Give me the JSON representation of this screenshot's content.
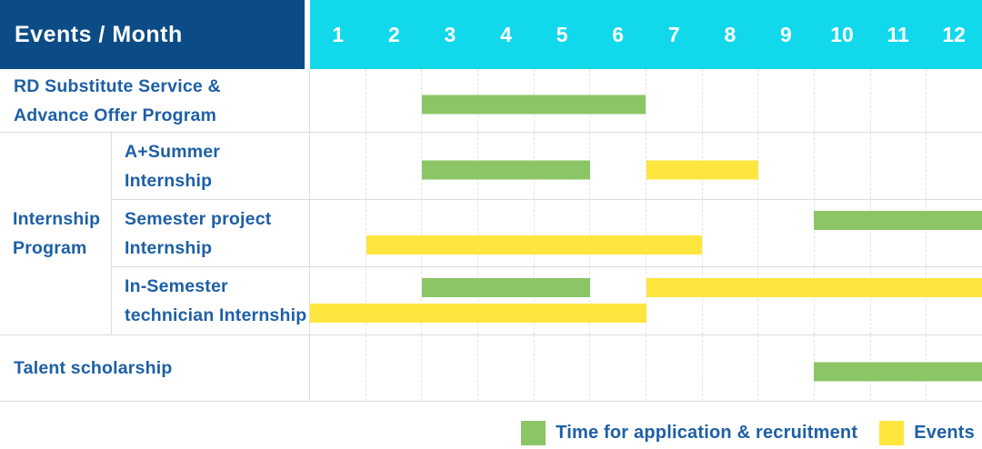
{
  "colors": {
    "navy": "#0b4c86",
    "cyan": "#12d8ec",
    "green": "#8bc566",
    "yellow": "#ffe63e",
    "label_blue": "#1d5fa6",
    "row_border": "#dcdcdc"
  },
  "table": {
    "header": {
      "title": "Events / Month",
      "months": [
        "1",
        "2",
        "3",
        "4",
        "5",
        "6",
        "7",
        "8",
        "9",
        "10",
        "11",
        "12"
      ]
    },
    "rows": [
      {
        "type": "simple",
        "label_lines": [
          "RD Substitute Service &",
          "Advance Offer Program"
        ],
        "bars": [
          {
            "color": "green",
            "start": 3,
            "end": 6,
            "track": "single"
          }
        ]
      },
      {
        "type": "group",
        "label_lines": [
          "Internship",
          "Program"
        ],
        "subrows": [
          {
            "label_lines": [
              "A+Summer",
              "Internship"
            ],
            "bars": [
              {
                "color": "green",
                "start": 3,
                "end": 5,
                "track": "single"
              },
              {
                "color": "yellow",
                "start": 7,
                "end": 8,
                "track": "single"
              }
            ]
          },
          {
            "label_lines": [
              "Semester project",
              "Internship"
            ],
            "bars": [
              {
                "color": "green",
                "start": 10,
                "end": 12,
                "track": "top"
              },
              {
                "color": "yellow",
                "start": 2,
                "end": 7,
                "track": "bottom"
              }
            ]
          },
          {
            "label_lines": [
              "In-Semester",
              "technician Internship"
            ],
            "bars": [
              {
                "color": "green",
                "start": 3,
                "end": 5,
                "track": "top"
              },
              {
                "color": "yellow",
                "start": 7,
                "end": 12,
                "track": "top"
              },
              {
                "color": "yellow",
                "start": 1,
                "end": 6,
                "track": "bottom"
              }
            ]
          }
        ]
      },
      {
        "type": "simple",
        "label_lines": [
          "Talent scholarship"
        ],
        "bars": [
          {
            "color": "green",
            "start": 10,
            "end": 12,
            "track": "single"
          }
        ]
      }
    ]
  },
  "legend": {
    "items": [
      {
        "label": "Time for application & recruitment",
        "color": "green"
      },
      {
        "label": "Events",
        "color": "yellow"
      }
    ]
  },
  "chart_data": {
    "type": "table",
    "title": "Events / Month",
    "x_axis": {
      "label": "Month",
      "ticks": [
        1,
        2,
        3,
        4,
        5,
        6,
        7,
        8,
        9,
        10,
        11,
        12
      ],
      "range": [
        1,
        12
      ]
    },
    "legend": {
      "green": "Time for application & recruitment",
      "yellow": "Events"
    },
    "rows": [
      {
        "event": "RD Substitute Service & Advance Offer Program",
        "group": null,
        "application_recruitment_months": [
          [
            3,
            6
          ]
        ],
        "events_months": []
      },
      {
        "event": "A+Summer Internship",
        "group": "Internship Program",
        "application_recruitment_months": [
          [
            3,
            5
          ]
        ],
        "events_months": [
          [
            7,
            8
          ]
        ]
      },
      {
        "event": "Semester project Internship",
        "group": "Internship Program",
        "application_recruitment_months": [
          [
            10,
            12
          ]
        ],
        "events_months": [
          [
            2,
            7
          ]
        ]
      },
      {
        "event": "In-Semester technician Internship",
        "group": "Internship Program",
        "application_recruitment_months": [
          [
            3,
            5
          ]
        ],
        "events_months": [
          [
            7,
            12
          ],
          [
            1,
            6
          ]
        ]
      },
      {
        "event": "Talent scholarship",
        "group": null,
        "application_recruitment_months": [
          [
            10,
            12
          ]
        ],
        "events_months": []
      }
    ],
    "layout": {
      "grid": "dashed vertical month lines",
      "legend_position": "bottom-right"
    }
  }
}
